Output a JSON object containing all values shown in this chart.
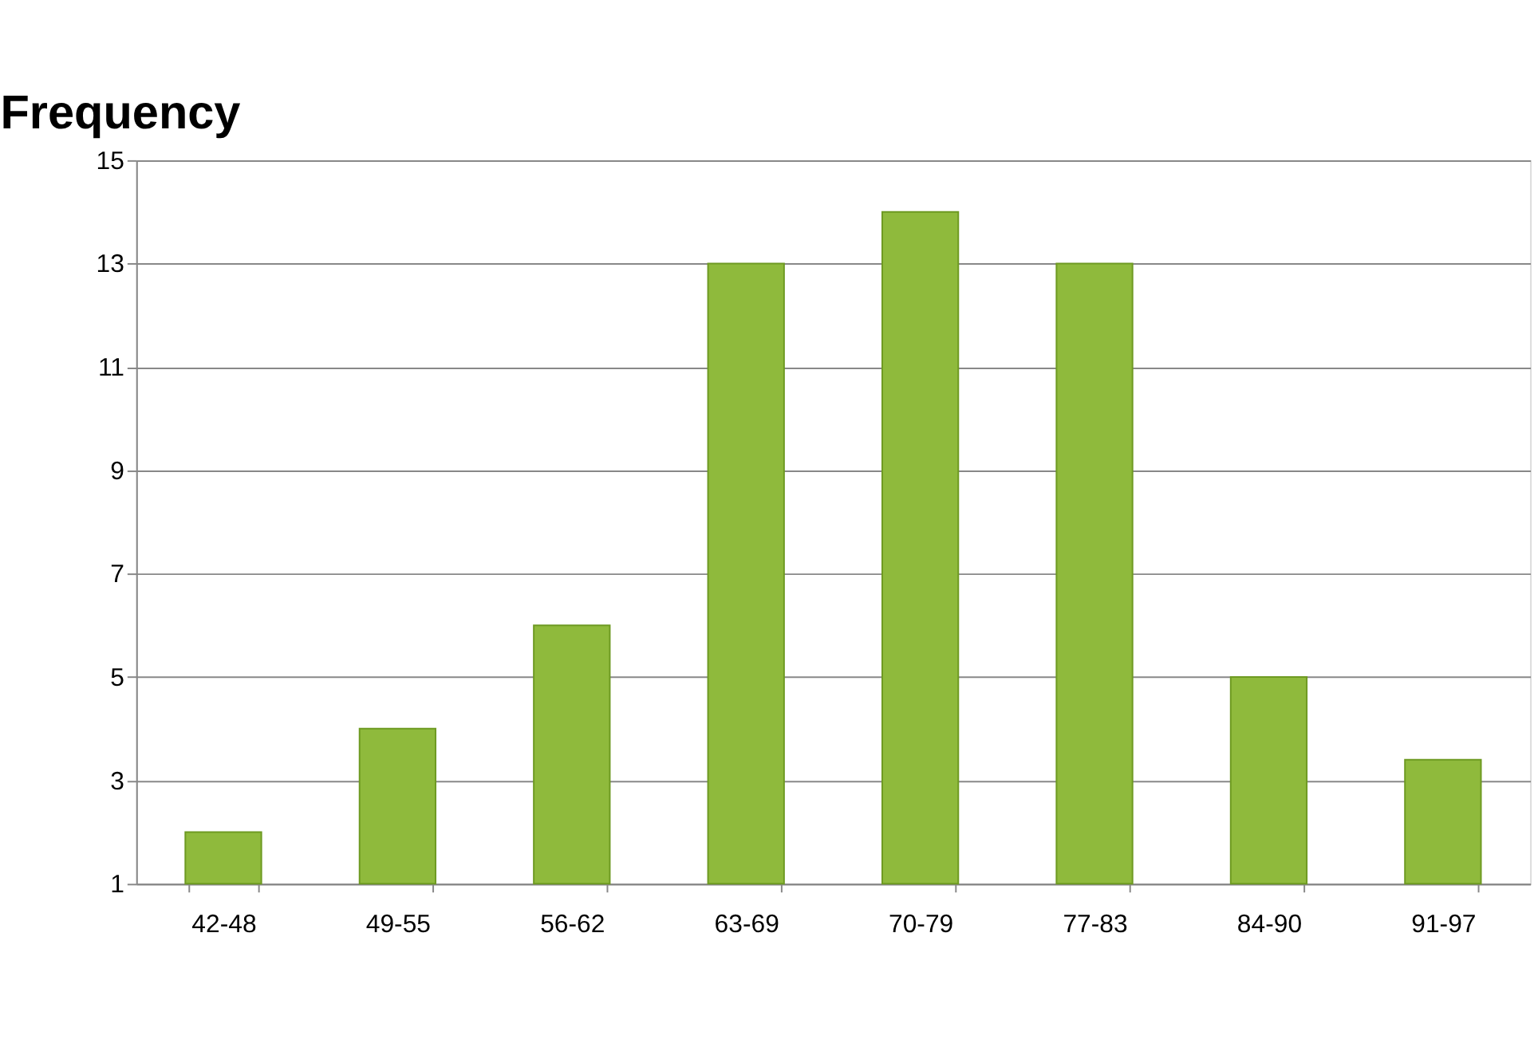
{
  "chart_data": {
    "type": "bar",
    "title": "Frequency",
    "categories": [
      "42-48",
      "49-55",
      "56-62",
      "63-69",
      "70-79",
      "77-83",
      "84-90",
      "91-97"
    ],
    "values": [
      2,
      4,
      6,
      13,
      14,
      13,
      5,
      3.4
    ],
    "color": "#8fba3c",
    "ylim": [
      1,
      15
    ],
    "yticks": [
      1,
      3,
      5,
      7,
      9,
      11,
      13,
      15
    ],
    "grid": "y"
  }
}
